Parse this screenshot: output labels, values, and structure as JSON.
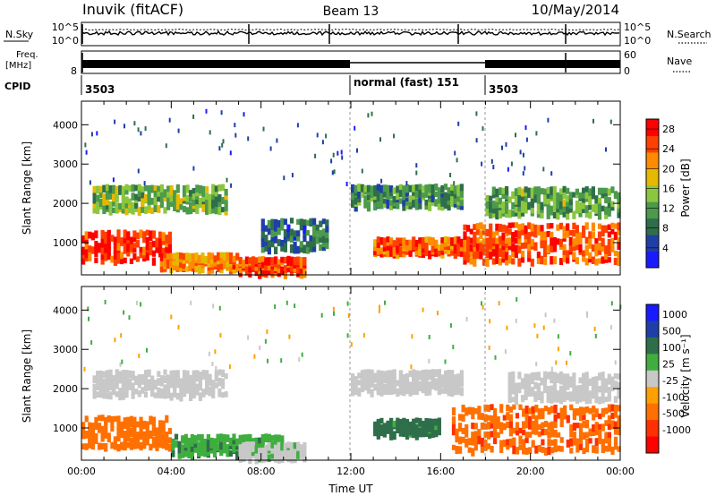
{
  "header": {
    "station": "Inuvik (fitACF)",
    "beam": "Beam 13",
    "date": "10/May/2014"
  },
  "noise_panel": {
    "left_label": "N.Sky",
    "right_label": "N.Search",
    "right_ticks": [
      "10^5",
      "10^0"
    ],
    "left_ticks": [
      "10^5",
      "10^0"
    ]
  },
  "freq_panel": {
    "left_label_1": "Freq.",
    "left_label_2": "[MHz]",
    "left_ticks": [
      "8"
    ],
    "right_label": "Nave",
    "right_ticks": [
      "60",
      "0"
    ]
  },
  "cpid": {
    "label": "CPID",
    "segments": [
      {
        "id": "3503",
        "start_h": 0
      },
      {
        "id": "normal (fast) 151",
        "start_h": 12
      },
      {
        "id": "3503",
        "start_h": 18
      }
    ]
  },
  "colors": {
    "power": [
      "#1a1aff",
      "#1f3fa8",
      "#2f6e4a",
      "#4c9a4c",
      "#8cc63f",
      "#e6b800",
      "#ff8c00",
      "#ff4000",
      "#ff0000"
    ],
    "velocity": [
      "#1a1aff",
      "#1f3fa8",
      "#2f6e4a",
      "#3fae3f",
      "#c8c8c8",
      "#ffa000",
      "#ff7000",
      "#ff3000",
      "#ff0000"
    ]
  },
  "chart_data": [
    {
      "type": "heatmap",
      "name": "power-panel",
      "xlabel": "",
      "ylabel": "Slant Range [km]",
      "xlim": [
        0,
        24
      ],
      "ylim": [
        180,
        4600
      ],
      "y_ticks": [
        1000,
        2000,
        3000,
        4000
      ],
      "colorbar": {
        "label": "Power [dB]",
        "ticks": [
          4,
          8,
          12,
          16,
          20,
          24,
          28
        ],
        "range": [
          0,
          30
        ]
      },
      "echo_regions": [
        {
          "t0": 0.0,
          "t1": 4.0,
          "r0": 500,
          "r1": 1300,
          "level": 27
        },
        {
          "t0": 0.5,
          "t1": 6.5,
          "r0": 1800,
          "r1": 2450,
          "level": 14
        },
        {
          "t0": 3.5,
          "t1": 7.0,
          "r0": 300,
          "r1": 700,
          "level": 22
        },
        {
          "t0": 7.0,
          "t1": 10.0,
          "r0": 200,
          "r1": 600,
          "level": 26
        },
        {
          "t0": 8.0,
          "t1": 11.0,
          "r0": 800,
          "r1": 1600,
          "level": 8
        },
        {
          "t0": 12.0,
          "t1": 17.0,
          "r0": 1900,
          "r1": 2450,
          "level": 10
        },
        {
          "t0": 13.0,
          "t1": 19.0,
          "r0": 700,
          "r1": 1100,
          "level": 24
        },
        {
          "t0": 17.0,
          "t1": 24.0,
          "r0": 500,
          "r1": 1500,
          "level": 25
        },
        {
          "t0": 18.0,
          "t1": 24.0,
          "r0": 1700,
          "r1": 2400,
          "level": 12
        }
      ]
    },
    {
      "type": "heatmap",
      "name": "velocity-panel",
      "xlabel": "Time UT",
      "ylabel": "Slant Range [km]",
      "xlim": [
        0,
        24
      ],
      "ylim": [
        180,
        4600
      ],
      "y_ticks": [
        1000,
        2000,
        3000,
        4000
      ],
      "x_ticks": [
        "00:00",
        "04:00",
        "08:00",
        "12:00",
        "16:00",
        "20:00",
        "00:00"
      ],
      "colorbar": {
        "label": "Velocity [m s⁻¹]",
        "ticks": [
          "1000",
          "500",
          "100",
          "25",
          "-25",
          "-100",
          "-500",
          "-1000"
        ]
      },
      "echo_regions": [
        {
          "t0": 0.0,
          "t1": 4.0,
          "r0": 500,
          "r1": 1300,
          "velocity": -300
        },
        {
          "t0": 0.5,
          "t1": 6.5,
          "r0": 1800,
          "r1": 2450,
          "velocity": 0
        },
        {
          "t0": 4.0,
          "t1": 9.0,
          "r0": 300,
          "r1": 800,
          "velocity": 80
        },
        {
          "t0": 7.0,
          "t1": 10.0,
          "r0": 200,
          "r1": 600,
          "velocity": 10
        },
        {
          "t0": 12.0,
          "t1": 17.0,
          "r0": 1900,
          "r1": 2450,
          "velocity": 0
        },
        {
          "t0": 13.0,
          "t1": 16.0,
          "r0": 800,
          "r1": 1200,
          "velocity": 150
        },
        {
          "t0": 16.5,
          "t1": 24.0,
          "r0": 400,
          "r1": 1600,
          "velocity": -400
        },
        {
          "t0": 19.0,
          "t1": 24.0,
          "r0": 1700,
          "r1": 2400,
          "velocity": 0
        }
      ]
    }
  ]
}
